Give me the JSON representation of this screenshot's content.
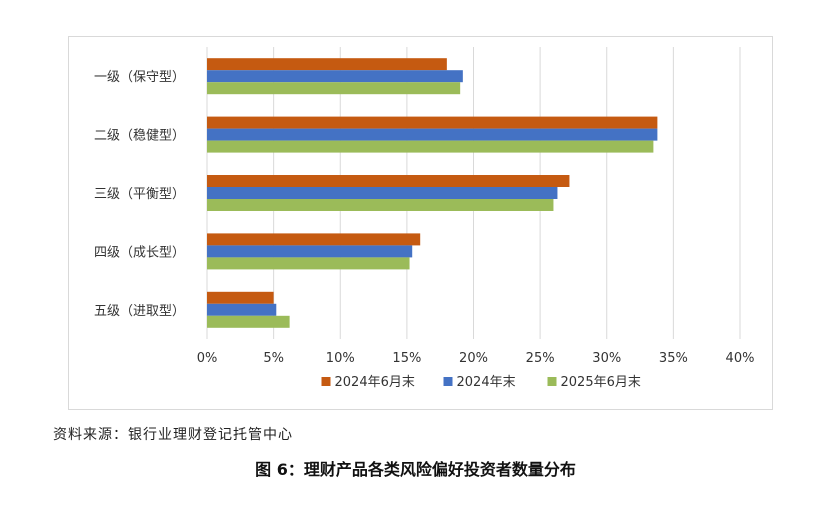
{
  "chart_data": {
    "type": "bar",
    "orientation": "horizontal",
    "categories": [
      "一级（保守型）",
      "二级（稳健型）",
      "三级（平衡型）",
      "四级（成长型）",
      "五级（进取型）"
    ],
    "series": [
      {
        "name": "2024年6月末",
        "color": "#C55A11",
        "values": [
          18.0,
          33.8,
          27.2,
          16.0,
          5.0
        ]
      },
      {
        "name": "2024年末",
        "color": "#4472C4",
        "values": [
          19.2,
          33.8,
          26.3,
          15.4,
          5.2
        ]
      },
      {
        "name": "2025年6月末",
        "color": "#9BBB59",
        "values": [
          19.0,
          33.5,
          26.0,
          15.2,
          6.2
        ]
      }
    ],
    "xlim": [
      0,
      40
    ],
    "xticks": [
      "0%",
      "5%",
      "10%",
      "15%",
      "20%",
      "25%",
      "30%",
      "35%",
      "40%"
    ],
    "grid": true,
    "legend_position": "bottom"
  },
  "source_text": "资料来源：银行业理财登记托管中心",
  "caption_text": "图 6：理财产品各类风险偏好投资者数量分布"
}
